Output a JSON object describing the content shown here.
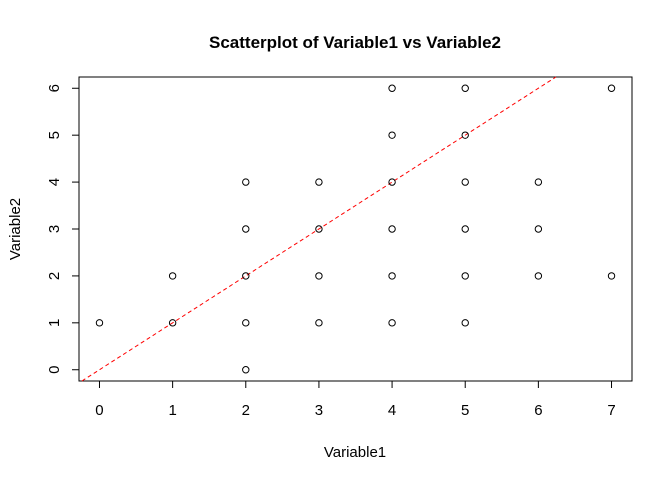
{
  "chart_data": {
    "type": "scatter",
    "title": "Scatterplot of Variable1 vs Variable2",
    "xlabel": "Variable1",
    "ylabel": "Variable2",
    "xlim": [
      -0.28,
      7.28
    ],
    "ylim": [
      -0.24,
      6.24
    ],
    "xticks": [
      0,
      1,
      2,
      3,
      4,
      5,
      6,
      7
    ],
    "yticks": [
      0,
      1,
      2,
      3,
      4,
      5,
      6
    ],
    "grid": false,
    "legend": "none",
    "point_color": "#000000",
    "line_color": "#ff0000",
    "points": [
      {
        "x": 0,
        "y": 1
      },
      {
        "x": 1,
        "y": 1
      },
      {
        "x": 1,
        "y": 2
      },
      {
        "x": 2,
        "y": 0
      },
      {
        "x": 2,
        "y": 1
      },
      {
        "x": 2,
        "y": 2
      },
      {
        "x": 2,
        "y": 3
      },
      {
        "x": 2,
        "y": 4
      },
      {
        "x": 3,
        "y": 1
      },
      {
        "x": 3,
        "y": 2
      },
      {
        "x": 3,
        "y": 3
      },
      {
        "x": 3,
        "y": 4
      },
      {
        "x": 4,
        "y": 1
      },
      {
        "x": 4,
        "y": 2
      },
      {
        "x": 4,
        "y": 3
      },
      {
        "x": 4,
        "y": 4
      },
      {
        "x": 4,
        "y": 5
      },
      {
        "x": 4,
        "y": 6
      },
      {
        "x": 5,
        "y": 1
      },
      {
        "x": 5,
        "y": 2
      },
      {
        "x": 5,
        "y": 3
      },
      {
        "x": 5,
        "y": 4
      },
      {
        "x": 5,
        "y": 5
      },
      {
        "x": 5,
        "y": 6
      },
      {
        "x": 6,
        "y": 2
      },
      {
        "x": 6,
        "y": 3
      },
      {
        "x": 6,
        "y": 4
      },
      {
        "x": 7,
        "y": 2
      },
      {
        "x": 7,
        "y": 6
      }
    ],
    "reference_line": {
      "style": "dashed",
      "slope": 1,
      "intercept": 0
    }
  }
}
